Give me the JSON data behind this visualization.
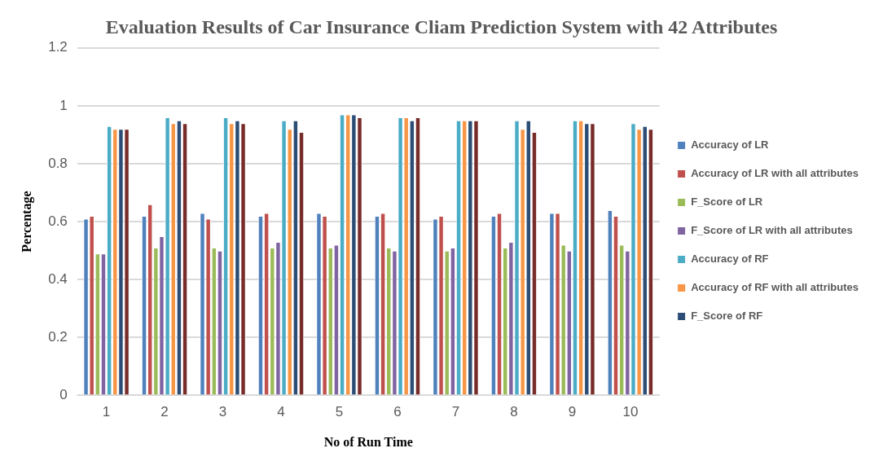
{
  "chart_data": {
    "type": "bar",
    "title": "Evaluation Results of Car Insurance Cliam Prediction System with 42 Attributes",
    "xlabel": "No of Run Time",
    "ylabel": "Percentage",
    "categories": [
      "1",
      "2",
      "3",
      "4",
      "5",
      "6",
      "7",
      "8",
      "9",
      "10"
    ],
    "series": [
      {
        "name": "Accuracy of LR",
        "color": "#4f81bd",
        "values": [
          0.61,
          0.62,
          0.63,
          0.62,
          0.63,
          0.62,
          0.61,
          0.62,
          0.63,
          0.64
        ]
      },
      {
        "name": "Accuracy of LR with all attributes",
        "color": "#c0504d",
        "values": [
          0.62,
          0.66,
          0.61,
          0.63,
          0.62,
          0.63,
          0.62,
          0.63,
          0.63,
          0.62
        ]
      },
      {
        "name": "F_Score of LR",
        "color": "#9bbb59",
        "values": [
          0.49,
          0.51,
          0.51,
          0.51,
          0.51,
          0.51,
          0.5,
          0.51,
          0.52,
          0.52
        ]
      },
      {
        "name": "F_Score of LR with all attributes",
        "color": "#8064a2",
        "values": [
          0.49,
          0.55,
          0.5,
          0.53,
          0.52,
          0.5,
          0.51,
          0.53,
          0.5,
          0.5
        ]
      },
      {
        "name": "Accuracy of RF",
        "color": "#4bacc6",
        "values": [
          0.93,
          0.96,
          0.96,
          0.95,
          0.97,
          0.96,
          0.95,
          0.95,
          0.95,
          0.94
        ]
      },
      {
        "name": "Accuracy of RF with all attributes",
        "color": "#f79646",
        "values": [
          0.92,
          0.94,
          0.94,
          0.92,
          0.97,
          0.96,
          0.95,
          0.92,
          0.95,
          0.92
        ]
      },
      {
        "name": "F_Score of RF",
        "color": "#2c4d75",
        "values": [
          0.92,
          0.95,
          0.95,
          0.95,
          0.97,
          0.95,
          0.95,
          0.95,
          0.94,
          0.93
        ]
      },
      {
        "color": "#772c2a",
        "values": [
          0.92,
          0.94,
          0.94,
          0.91,
          0.96,
          0.96,
          0.95,
          0.91,
          0.94,
          0.92
        ]
      }
    ],
    "ylim": [
      0,
      1.2
    ],
    "yticks": [
      0,
      0.2,
      0.4,
      0.6,
      0.8,
      1,
      1.2
    ],
    "grid": "y",
    "legend": "right"
  }
}
